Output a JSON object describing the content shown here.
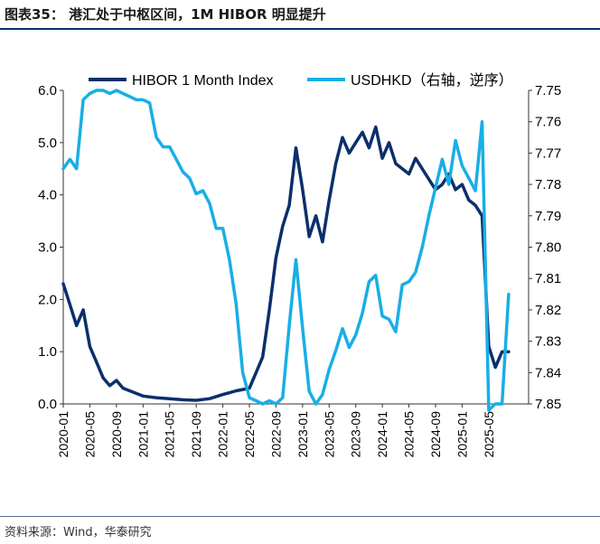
{
  "title": "图表35：  港汇处于中枢区间，1M HIBOR 明显提升",
  "source": "资料来源：Wind，华泰研究",
  "chart_data": {
    "type": "line",
    "grid": false,
    "legend_position": "top",
    "x_tick_labels": [
      "2020-01",
      "2020-05",
      "2020-09",
      "2021-01",
      "2021-05",
      "2021-09",
      "2022-01",
      "2022-05",
      "2022-09",
      "2023-01",
      "2023-05",
      "2023-09",
      "2024-01",
      "2024-05",
      "2024-09",
      "2025-01",
      "2025-05"
    ],
    "y_left": {
      "ylim": [
        0,
        6
      ],
      "ticks": [
        "0.0",
        "1.0",
        "2.0",
        "3.0",
        "4.0",
        "5.0",
        "6.0"
      ]
    },
    "y_right": {
      "ylim": [
        7.75,
        7.85
      ],
      "inverted": true,
      "ticks": [
        "7.75",
        "7.76",
        "7.77",
        "7.78",
        "7.79",
        "7.80",
        "7.81",
        "7.82",
        "7.83",
        "7.84",
        "7.85"
      ]
    },
    "series": [
      {
        "name": "HIBOR 1 Month Index",
        "axis": "left",
        "color": "#0b2f6b",
        "points": [
          [
            "2020-01",
            2.3
          ],
          [
            "2020-02",
            1.9
          ],
          [
            "2020-03",
            1.5
          ],
          [
            "2020-04",
            1.8
          ],
          [
            "2020-05",
            1.1
          ],
          [
            "2020-06",
            0.8
          ],
          [
            "2020-07",
            0.5
          ],
          [
            "2020-08",
            0.35
          ],
          [
            "2020-09",
            0.45
          ],
          [
            "2020-10",
            0.3
          ],
          [
            "2020-11",
            0.25
          ],
          [
            "2020-12",
            0.2
          ],
          [
            "2021-01",
            0.15
          ],
          [
            "2021-03",
            0.12
          ],
          [
            "2021-05",
            0.1
          ],
          [
            "2021-07",
            0.08
          ],
          [
            "2021-09",
            0.07
          ],
          [
            "2021-11",
            0.1
          ],
          [
            "2022-01",
            0.18
          ],
          [
            "2022-03",
            0.25
          ],
          [
            "2022-05",
            0.3
          ],
          [
            "2022-06",
            0.6
          ],
          [
            "2022-07",
            0.9
          ],
          [
            "2022-08",
            1.8
          ],
          [
            "2022-09",
            2.8
          ],
          [
            "2022-10",
            3.4
          ],
          [
            "2022-11",
            3.8
          ],
          [
            "2022-12",
            4.9
          ],
          [
            "2023-01",
            4.1
          ],
          [
            "2023-02",
            3.2
          ],
          [
            "2023-03",
            3.6
          ],
          [
            "2023-04",
            3.1
          ],
          [
            "2023-05",
            3.9
          ],
          [
            "2023-06",
            4.6
          ],
          [
            "2023-07",
            5.1
          ],
          [
            "2023-08",
            4.8
          ],
          [
            "2023-09",
            5.0
          ],
          [
            "2023-10",
            5.2
          ],
          [
            "2023-11",
            4.9
          ],
          [
            "2023-12",
            5.3
          ],
          [
            "2024-01",
            4.7
          ],
          [
            "2024-02",
            5.0
          ],
          [
            "2024-03",
            4.6
          ],
          [
            "2024-04",
            4.5
          ],
          [
            "2024-05",
            4.4
          ],
          [
            "2024-06",
            4.7
          ],
          [
            "2024-07",
            4.5
          ],
          [
            "2024-08",
            4.3
          ],
          [
            "2024-09",
            4.1
          ],
          [
            "2024-10",
            4.2
          ],
          [
            "2024-11",
            4.4
          ],
          [
            "2024-12",
            4.1
          ],
          [
            "2025-01",
            4.2
          ],
          [
            "2025-02",
            3.9
          ],
          [
            "2025-03",
            3.8
          ],
          [
            "2025-04",
            3.6
          ],
          [
            "2025-05",
            1.1
          ],
          [
            "2025-06",
            0.7
          ],
          [
            "2025-07",
            1.0
          ],
          [
            "2025-08",
            1.0
          ]
        ]
      },
      {
        "name": "USDHKD（右轴，逆序）",
        "axis": "right",
        "color": "#19aee6",
        "points": [
          [
            "2020-01",
            7.775
          ],
          [
            "2020-02",
            7.772
          ],
          [
            "2020-03",
            7.775
          ],
          [
            "2020-04",
            7.753
          ],
          [
            "2020-05",
            7.751
          ],
          [
            "2020-06",
            7.75
          ],
          [
            "2020-07",
            7.75
          ],
          [
            "2020-08",
            7.751
          ],
          [
            "2020-09",
            7.75
          ],
          [
            "2020-10",
            7.751
          ],
          [
            "2020-11",
            7.752
          ],
          [
            "2020-12",
            7.753
          ],
          [
            "2021-01",
            7.753
          ],
          [
            "2021-02",
            7.754
          ],
          [
            "2021-03",
            7.765
          ],
          [
            "2021-04",
            7.768
          ],
          [
            "2021-05",
            7.768
          ],
          [
            "2021-06",
            7.772
          ],
          [
            "2021-07",
            7.776
          ],
          [
            "2021-08",
            7.778
          ],
          [
            "2021-09",
            7.783
          ],
          [
            "2021-10",
            7.782
          ],
          [
            "2021-11",
            7.786
          ],
          [
            "2021-12",
            7.794
          ],
          [
            "2022-01",
            7.794
          ],
          [
            "2022-02",
            7.804
          ],
          [
            "2022-03",
            7.818
          ],
          [
            "2022-04",
            7.84
          ],
          [
            "2022-05",
            7.848
          ],
          [
            "2022-06",
            7.849
          ],
          [
            "2022-07",
            7.85
          ],
          [
            "2022-08",
            7.849
          ],
          [
            "2022-09",
            7.85
          ],
          [
            "2022-10",
            7.848
          ],
          [
            "2022-11",
            7.825
          ],
          [
            "2022-12",
            7.804
          ],
          [
            "2023-01",
            7.826
          ],
          [
            "2023-02",
            7.846
          ],
          [
            "2023-03",
            7.85
          ],
          [
            "2023-04",
            7.847
          ],
          [
            "2023-05",
            7.839
          ],
          [
            "2023-06",
            7.833
          ],
          [
            "2023-07",
            7.826
          ],
          [
            "2023-08",
            7.832
          ],
          [
            "2023-09",
            7.828
          ],
          [
            "2023-10",
            7.821
          ],
          [
            "2023-11",
            7.811
          ],
          [
            "2023-12",
            7.809
          ],
          [
            "2024-01",
            7.822
          ],
          [
            "2024-02",
            7.823
          ],
          [
            "2024-03",
            7.827
          ],
          [
            "2024-04",
            7.812
          ],
          [
            "2024-05",
            7.811
          ],
          [
            "2024-06",
            7.808
          ],
          [
            "2024-07",
            7.8
          ],
          [
            "2024-08",
            7.79
          ],
          [
            "2024-09",
            7.781
          ],
          [
            "2024-10",
            7.772
          ],
          [
            "2024-11",
            7.78
          ],
          [
            "2024-12",
            7.766
          ],
          [
            "2025-01",
            7.774
          ],
          [
            "2025-02",
            7.778
          ],
          [
            "2025-03",
            7.782
          ],
          [
            "2025-04",
            7.76
          ],
          [
            "2025-05",
            7.852
          ],
          [
            "2025-06",
            7.85
          ],
          [
            "2025-07",
            7.85
          ],
          [
            "2025-08",
            7.815
          ]
        ]
      }
    ]
  }
}
